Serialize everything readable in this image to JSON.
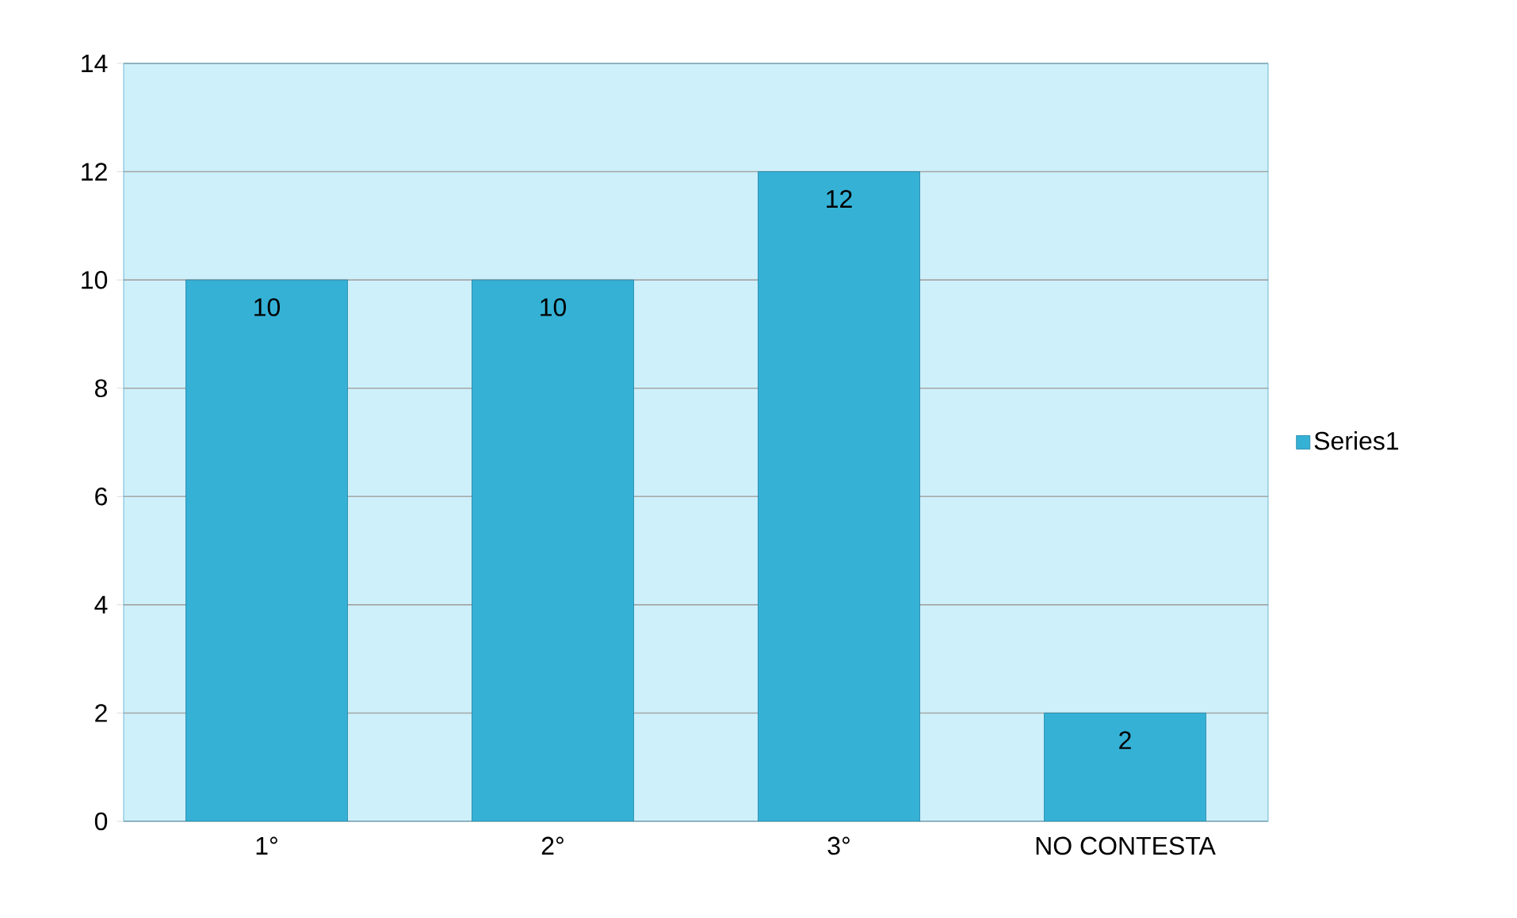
{
  "chart_data": {
    "type": "bar",
    "categories": [
      "1°",
      "2°",
      "3°",
      "NO CONTESTA"
    ],
    "series": [
      {
        "name": "Series1",
        "color": "#35b1d6",
        "values": [
          10,
          10,
          12,
          2
        ]
      }
    ],
    "ylim": [
      0,
      14
    ],
    "yticks": [
      0,
      2,
      4,
      6,
      8,
      10,
      12,
      14
    ],
    "grid": "y",
    "legend": "right",
    "data_labels": true
  }
}
